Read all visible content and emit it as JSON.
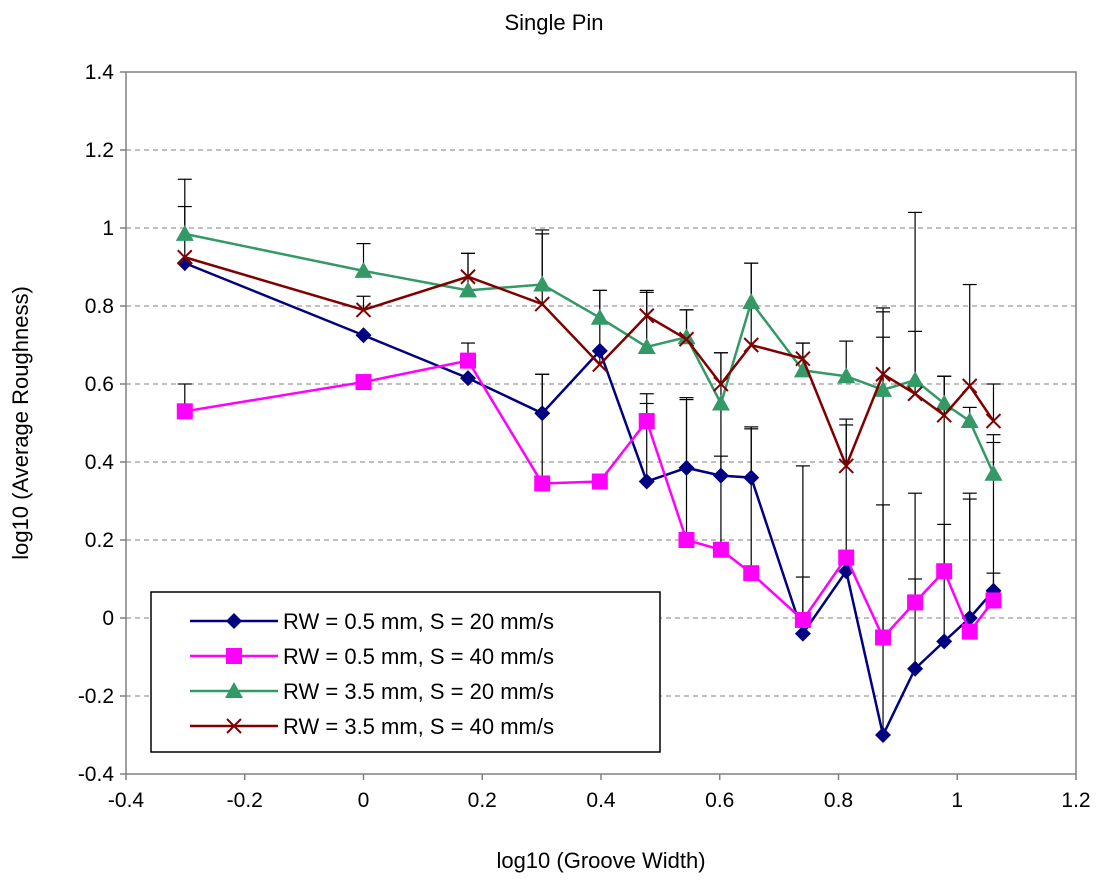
{
  "chart_data": {
    "type": "line",
    "title": "Single Pin",
    "xlabel": "log10 (Groove Width)",
    "ylabel": "log10 (Average Roughness)",
    "xlim": [
      -0.4,
      1.2
    ],
    "ylim": [
      -0.4,
      1.4
    ],
    "x_ticks": [
      -0.4,
      -0.2,
      0,
      0.2,
      0.4,
      0.6,
      0.8,
      1,
      1.2
    ],
    "x_tick_labels": [
      "-0.4",
      "-0.2",
      "0",
      "0.2",
      "0.4",
      "0.6",
      "0.8",
      "1",
      "1.2"
    ],
    "y_ticks": [
      -0.4,
      -0.2,
      0,
      0.2,
      0.4,
      0.6,
      0.8,
      1,
      1.2,
      1.4
    ],
    "y_tick_labels": [
      "-0.4",
      "-0.2",
      "0",
      "0.2",
      "0.4",
      "0.6",
      "0.8",
      "1",
      "1.2",
      "1.4"
    ],
    "grid": "horizontal dashed",
    "legend_position": "bottom-left",
    "x": [
      -0.301,
      0,
      0.176,
      0.301,
      0.398,
      0.477,
      0.544,
      0.602,
      0.653,
      0.74,
      0.813,
      0.875,
      0.929,
      0.978,
      1.021,
      1.061
    ],
    "series": [
      {
        "name": "RW = 0.5 mm, S = 20 mm/s",
        "color": "#000080",
        "marker": "diamond",
        "values": [
          0.91,
          0.725,
          0.615,
          0.525,
          0.685,
          0.35,
          0.385,
          0.365,
          0.36,
          -0.04,
          0.12,
          -0.3,
          -0.13,
          -0.06,
          0.0,
          0.07
        ],
        "error_plus": [
          0,
          0,
          0,
          0.1,
          0,
          0.2,
          0.18,
          0.17,
          0.13,
          0.43,
          0,
          0.59,
          0.45,
          0.3,
          0.32,
          0.38
        ]
      },
      {
        "name": "RW = 0.5 mm, S = 40 mm/s",
        "color": "#ff00ff",
        "marker": "square",
        "values": [
          0.53,
          0.605,
          0.66,
          0.345,
          0.35,
          0.505,
          0.2,
          0.175,
          0.115,
          -0.005,
          0.155,
          -0.05,
          0.04,
          0.12,
          -0.035,
          0.045
        ],
        "error_plus": [
          0.07,
          0,
          0.045,
          0.28,
          0,
          0.07,
          0.36,
          0.24,
          0.37,
          0.11,
          0.34,
          0.77,
          0.06,
          0.5,
          0.34,
          0.07
        ]
      },
      {
        "name": "RW = 3.5 mm, S = 20 mm/s",
        "color": "#339966",
        "marker": "triangle",
        "values": [
          0.985,
          0.89,
          0.84,
          0.855,
          0.77,
          0.695,
          0.72,
          0.55,
          0.81,
          0.635,
          0.62,
          0.585,
          0.61,
          0.55,
          0.505,
          0.37
        ],
        "error_plus": [
          0.14,
          0.07,
          0.095,
          0.14,
          0.07,
          0.145,
          0.07,
          0.13,
          0.1,
          0.07,
          0.09,
          0.2,
          0.43,
          0.07,
          0.035,
          0.1
        ]
      },
      {
        "name": "RW = 3.5 mm, S = 40 mm/s",
        "color": "#800000",
        "marker": "x",
        "values": [
          0.925,
          0.79,
          0.875,
          0.805,
          0.65,
          0.775,
          0.715,
          0.6,
          0.7,
          0.665,
          0.39,
          0.625,
          0.575,
          0.52,
          0.595,
          0.505
        ],
        "error_plus": [
          0.13,
          0.035,
          0.06,
          0.18,
          0.19,
          0.06,
          0.075,
          0.08,
          0.21,
          0.04,
          0.12,
          0.17,
          0.16,
          0.1,
          0.26,
          0.095
        ]
      }
    ]
  }
}
